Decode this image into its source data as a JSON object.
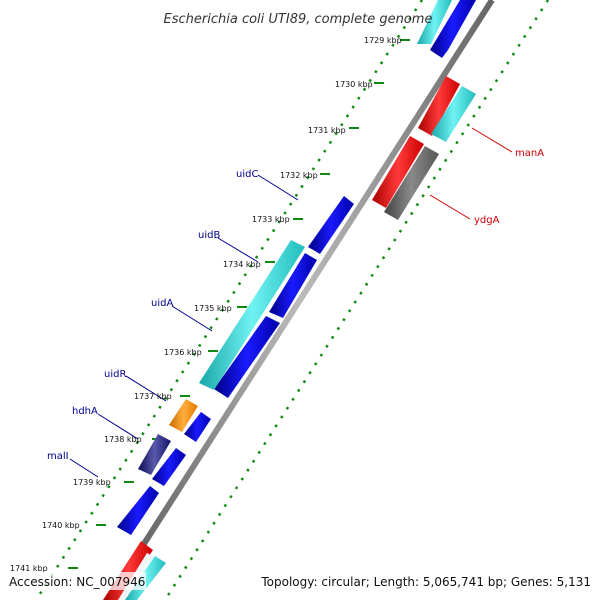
{
  "title": "Escherichia coli UTI89, complete genome",
  "footer": {
    "accession": "Accession: NC_007946",
    "summary": "Topology: circular; Length: 5,065,741 bp; Genes: 5,131"
  },
  "ticks": [
    "1729 kbp",
    "1730 kbp",
    "1731 kbp",
    "1732 kbp",
    "1733 kbp",
    "1734 kbp",
    "1735 kbp",
    "1736 kbp",
    "1737 kbp",
    "1738 kbp",
    "1739 kbp",
    "1740 kbp",
    "1741 kbp"
  ],
  "left_labels": [
    "uidC",
    "uidB",
    "uidA",
    "uidR",
    "hdhA",
    "malI"
  ],
  "right_labels": [
    "manA",
    "ydgA"
  ],
  "colors": {
    "cds_blue": "#0000dd",
    "cds_cyan": "#2fd1d1",
    "cds_red": "#ee1111",
    "cds_gray": "#666666",
    "cds_orange": "#ff8c00",
    "cds_navy": "#1a1a80",
    "backbone": "#888888",
    "dots": "#118811",
    "left_label_color": "#00008b",
    "right_label_color": "#cc0000"
  }
}
